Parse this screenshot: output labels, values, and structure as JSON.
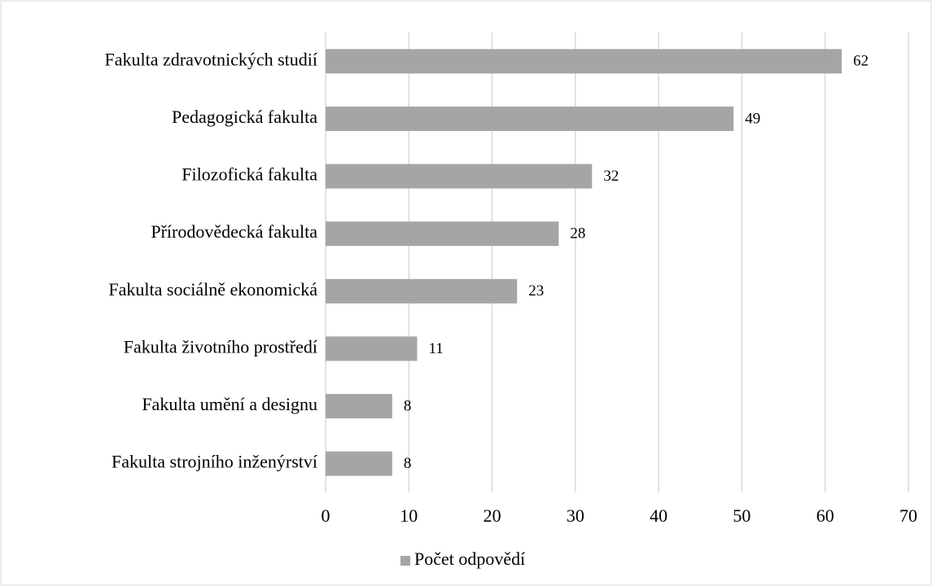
{
  "chart_data": {
    "type": "bar",
    "orientation": "horizontal",
    "categories": [
      "Fakulta zdravotnických studií",
      "Pedagogická fakulta",
      "Filozofická fakulta",
      "Přírodovědecká fakulta",
      "Fakulta sociálně ekonomická",
      "Fakulta životního prostředí",
      "Fakulta umění a designu",
      "Fakulta strojního inženýrství"
    ],
    "series": [
      {
        "name": "Počet odpovědí",
        "color": "#a5a5a5",
        "values": [
          62,
          49,
          32,
          28,
          23,
          11,
          8,
          8
        ]
      }
    ],
    "xlim": [
      0,
      70
    ],
    "xticks": [
      0,
      10,
      20,
      30,
      40,
      50,
      60,
      70
    ],
    "grid": true,
    "legend": "bottom"
  }
}
